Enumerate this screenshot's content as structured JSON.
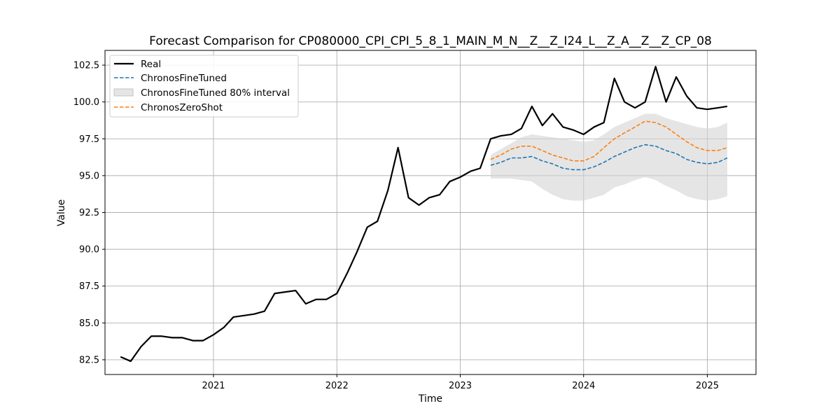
{
  "chart_data": {
    "type": "line",
    "title": "Forecast Comparison for CP080000_CPI_CPI_5_8_1_MAIN_M_N__Z__Z_I24_L__Z_A__Z__Z_CP_08",
    "xlabel": "Time",
    "ylabel": "Value",
    "ylim": [
      81.5,
      103.5
    ],
    "xlim": [
      "2020-02-15",
      "2025-05-25"
    ],
    "grid": true,
    "legend_position": "top-left",
    "x_ticks": [
      "2021",
      "2022",
      "2023",
      "2024",
      "2025"
    ],
    "y_ticks": [
      "82.5",
      "85.0",
      "87.5",
      "90.0",
      "92.5",
      "95.0",
      "97.5",
      "100.0",
      "102.5"
    ],
    "colors": {
      "Real": "#000000",
      "ChronosFineTuned": "#1f77b4",
      "ChronosFineTuned 80% interval": "#d3d3d3",
      "ChronosZeroShot": "#ff7f0e"
    },
    "legend": [
      "Real",
      "ChronosFineTuned",
      "ChronosFineTuned 80% interval",
      "ChronosZeroShot"
    ],
    "series": [
      {
        "name": "Real",
        "style": "solid",
        "x": [
          "2020-04",
          "2020-05",
          "2020-06",
          "2020-07",
          "2020-08",
          "2020-09",
          "2020-10",
          "2020-11",
          "2020-12",
          "2021-01",
          "2021-02",
          "2021-03",
          "2021-04",
          "2021-05",
          "2021-06",
          "2021-07",
          "2021-08",
          "2021-09",
          "2021-10",
          "2021-11",
          "2021-12",
          "2022-01",
          "2022-02",
          "2022-03",
          "2022-04",
          "2022-05",
          "2022-06",
          "2022-07",
          "2022-08",
          "2022-09",
          "2022-10",
          "2022-11",
          "2022-12",
          "2023-01",
          "2023-02",
          "2023-03",
          "2023-04",
          "2023-05",
          "2023-06",
          "2023-07",
          "2023-08",
          "2023-09",
          "2023-10",
          "2023-11",
          "2023-12",
          "2024-01",
          "2024-02",
          "2024-03",
          "2024-04",
          "2024-05",
          "2024-06",
          "2024-07",
          "2024-08",
          "2024-09",
          "2024-10",
          "2024-11",
          "2024-12",
          "2025-01",
          "2025-02",
          "2025-03"
        ],
        "values": [
          82.7,
          82.4,
          83.4,
          84.1,
          84.1,
          84.0,
          84.0,
          83.8,
          83.8,
          84.2,
          84.7,
          85.4,
          85.5,
          85.6,
          85.8,
          87.0,
          87.1,
          87.2,
          86.3,
          86.6,
          86.6,
          87.0,
          88.4,
          89.8,
          91.5,
          91.9,
          94.0,
          96.9,
          93.5,
          93.0,
          93.5,
          93.7,
          94.6,
          94.9,
          95.3,
          95.5,
          97.5,
          97.7,
          97.8,
          98.2,
          99.7,
          98.4,
          99.2,
          98.3,
          98.1,
          97.8,
          98.3,
          98.6,
          101.6,
          100.0,
          99.6,
          100.0,
          102.4,
          100.0,
          101.7,
          100.4,
          99.6,
          99.5,
          99.6,
          99.7
        ]
      },
      {
        "name": "ChronosFineTuned",
        "style": "dashed",
        "x": [
          "2023-04",
          "2023-05",
          "2023-06",
          "2023-07",
          "2023-08",
          "2023-09",
          "2023-10",
          "2023-11",
          "2023-12",
          "2024-01",
          "2024-02",
          "2024-03",
          "2024-04",
          "2024-05",
          "2024-06",
          "2024-07",
          "2024-08",
          "2024-09",
          "2024-10",
          "2024-11",
          "2024-12",
          "2025-01",
          "2025-02",
          "2025-03"
        ],
        "values": [
          95.7,
          95.9,
          96.2,
          96.2,
          96.3,
          96.0,
          95.8,
          95.5,
          95.4,
          95.4,
          95.6,
          95.9,
          96.3,
          96.6,
          96.9,
          97.1,
          97.0,
          96.7,
          96.5,
          96.1,
          95.9,
          95.8,
          95.9,
          96.2
        ]
      },
      {
        "name": "ChronosZeroShot",
        "style": "dashed",
        "x": [
          "2023-04",
          "2023-05",
          "2023-06",
          "2023-07",
          "2023-08",
          "2023-09",
          "2023-10",
          "2023-11",
          "2023-12",
          "2024-01",
          "2024-02",
          "2024-03",
          "2024-04",
          "2024-05",
          "2024-06",
          "2024-07",
          "2024-08",
          "2024-09",
          "2024-10",
          "2024-11",
          "2024-12",
          "2025-01",
          "2025-02",
          "2025-03"
        ],
        "values": [
          96.1,
          96.4,
          96.8,
          97.0,
          97.0,
          96.7,
          96.4,
          96.2,
          96.0,
          96.0,
          96.3,
          96.9,
          97.5,
          97.9,
          98.3,
          98.7,
          98.6,
          98.3,
          97.8,
          97.3,
          96.9,
          96.7,
          96.7,
          96.9
        ]
      }
    ],
    "interval": {
      "name": "ChronosFineTuned 80% interval",
      "x": [
        "2023-04",
        "2023-05",
        "2023-06",
        "2023-07",
        "2023-08",
        "2023-09",
        "2023-10",
        "2023-11",
        "2023-12",
        "2024-01",
        "2024-02",
        "2024-03",
        "2024-04",
        "2024-05",
        "2024-06",
        "2024-07",
        "2024-08",
        "2024-09",
        "2024-10",
        "2024-11",
        "2024-12",
        "2025-01",
        "2025-02",
        "2025-03"
      ],
      "lower": [
        94.8,
        94.8,
        94.8,
        94.7,
        94.6,
        94.1,
        93.7,
        93.4,
        93.3,
        93.3,
        93.5,
        93.7,
        94.2,
        94.4,
        94.7,
        94.9,
        94.7,
        94.3,
        94.0,
        93.6,
        93.4,
        93.3,
        93.4,
        93.6
      ],
      "upper": [
        96.4,
        96.8,
        97.2,
        97.6,
        97.8,
        97.7,
        97.6,
        97.5,
        97.4,
        97.3,
        97.4,
        97.8,
        98.3,
        98.6,
        98.9,
        99.2,
        99.2,
        98.9,
        98.7,
        98.5,
        98.3,
        98.2,
        98.3,
        98.6
      ]
    }
  }
}
